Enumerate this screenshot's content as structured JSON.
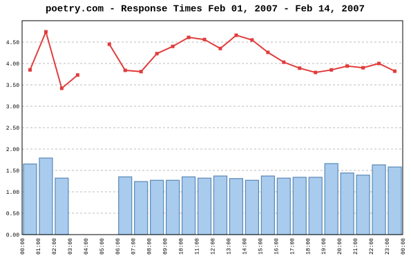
{
  "chart_data": {
    "type": "bar_line",
    "title": "poetry.com - Response Times Feb 01, 2007 - Feb 14, 2007",
    "xtick_labels": [
      "00:00",
      "01:00",
      "02:00",
      "03:00",
      "04:00",
      "05:00",
      "06:00",
      "07:00",
      "08:00",
      "09:00",
      "10:00",
      "11:00",
      "12:00",
      "13:00",
      "14:00",
      "15:00",
      "16:00",
      "17:00",
      "18:00",
      "19:00",
      "20:00",
      "21:00",
      "22:00",
      "23:00",
      "00:00"
    ],
    "series": [
      {
        "type": "bar",
        "color": "#a8cbee",
        "edge_color": "#5a88b5",
        "values": [
          1.65,
          1.79,
          1.32,
          null,
          null,
          null,
          1.35,
          1.24,
          1.27,
          1.27,
          1.35,
          1.32,
          1.37,
          1.31,
          1.27,
          1.37,
          1.32,
          1.34,
          1.34,
          1.66,
          1.44,
          1.39,
          1.63,
          1.58
        ]
      },
      {
        "type": "line",
        "color": "#e03c3c",
        "values": [
          3.85,
          4.74,
          3.42,
          3.73,
          null,
          4.45,
          3.84,
          3.81,
          4.23,
          4.4,
          4.61,
          4.56,
          4.35,
          4.66,
          4.55,
          4.26,
          4.03,
          3.89,
          3.79,
          3.85,
          3.94,
          3.9,
          4.0,
          3.82
        ]
      }
    ],
    "ylim": [
      0,
      5
    ],
    "yticks": [
      {
        "value": 0,
        "label": "0.00"
      },
      {
        "value": 0.5,
        "label": "0.50"
      },
      {
        "value": 1,
        "label": "1.00"
      },
      {
        "value": 1.5,
        "label": "1.50"
      },
      {
        "value": 2,
        "label": "2.00"
      },
      {
        "value": 2.5,
        "label": "2.50"
      },
      {
        "value": 3,
        "label": "3.00"
      },
      {
        "value": 3.5,
        "label": "3.50"
      },
      {
        "value": 4,
        "label": "4.00"
      },
      {
        "value": 4.5,
        "label": "4.50"
      }
    ],
    "grid": true
  }
}
